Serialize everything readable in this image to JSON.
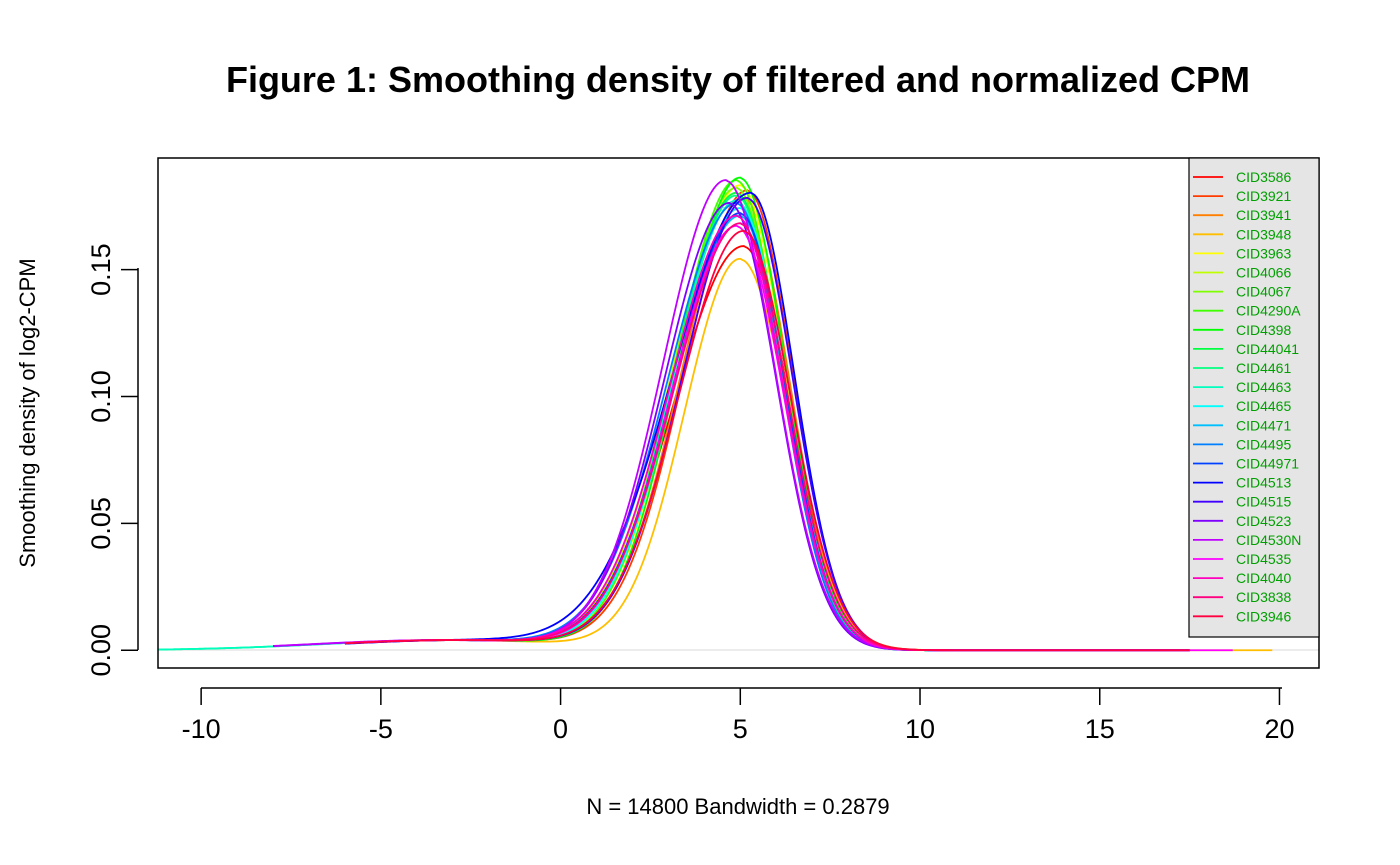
{
  "chart_data": {
    "type": "line",
    "title": "Figure 1: Smoothing density of filtered and normalized CPM",
    "xlabel": "N = 14800   Bandwidth = 0.2879",
    "ylabel": "Smoothing density of log2-CPM",
    "xlim": [
      -11.2,
      21.1
    ],
    "ylim": [
      -0.007,
      0.194
    ],
    "x_ticks": [
      -10,
      -5,
      0,
      5,
      10,
      15,
      20
    ],
    "x_tick_labels": [
      "-10",
      "-5",
      "0",
      "5",
      "10",
      "15",
      "20"
    ],
    "y_ticks": [
      0,
      0.05,
      0.1,
      0.15
    ],
    "y_tick_labels": [
      "0.00",
      "0.05",
      "0.10",
      "0.15"
    ],
    "zero_line": true,
    "legend_position": "top-right",
    "legend_background": "#e5e5e5",
    "legend_text_color": "#00a000",
    "series": [
      {
        "name": "CID3586",
        "color": "#ff0000",
        "peak_x": 5.1,
        "peak_y": 0.159,
        "left_sd": 1.95,
        "right_sd": 1.3,
        "x_min": -5.5,
        "x_max": 17.5
      },
      {
        "name": "CID3921",
        "color": "#ff3c00",
        "peak_x": 5.2,
        "peak_y": 0.181,
        "left_sd": 1.75,
        "right_sd": 1.25,
        "x_min": -5.5,
        "x_max": 17.5
      },
      {
        "name": "CID3941",
        "color": "#ff7f00",
        "peak_x": 5.1,
        "peak_y": 0.178,
        "left_sd": 1.75,
        "right_sd": 1.25,
        "x_min": -5.5,
        "x_max": 17.5
      },
      {
        "name": "CID3948",
        "color": "#ffbf00",
        "peak_x": 5.0,
        "peak_y": 0.154,
        "left_sd": 1.55,
        "right_sd": 1.35,
        "x_min": -5.5,
        "x_max": 19.8
      },
      {
        "name": "CID3963",
        "color": "#ffff00",
        "peak_x": 5.0,
        "peak_y": 0.183,
        "left_sd": 1.75,
        "right_sd": 1.25,
        "x_min": -5.5,
        "x_max": 17.5
      },
      {
        "name": "CID4066",
        "color": "#bfff00",
        "peak_x": 4.9,
        "peak_y": 0.18,
        "left_sd": 1.8,
        "right_sd": 1.25,
        "x_min": -5.5,
        "x_max": 17.5
      },
      {
        "name": "CID4067",
        "color": "#80ff00",
        "peak_x": 4.9,
        "peak_y": 0.182,
        "left_sd": 1.75,
        "right_sd": 1.25,
        "x_min": -5.5,
        "x_max": 17.5
      },
      {
        "name": "CID4290A",
        "color": "#40ff00",
        "peak_x": 4.9,
        "peak_y": 0.185,
        "left_sd": 1.7,
        "right_sd": 1.25,
        "x_min": -5.5,
        "x_max": 17.5
      },
      {
        "name": "CID4398",
        "color": "#00ff00",
        "peak_x": 5.0,
        "peak_y": 0.186,
        "left_sd": 1.7,
        "right_sd": 1.25,
        "x_min": -5.5,
        "x_max": 17.5
      },
      {
        "name": "CID44041",
        "color": "#00ff40",
        "peak_x": 4.9,
        "peak_y": 0.18,
        "left_sd": 1.75,
        "right_sd": 1.25,
        "x_min": -5.5,
        "x_max": 17.5
      },
      {
        "name": "CID4461",
        "color": "#00ff80",
        "peak_x": 4.9,
        "peak_y": 0.179,
        "left_sd": 1.75,
        "right_sd": 1.25,
        "x_min": -11.2,
        "x_max": 17.5
      },
      {
        "name": "CID4463",
        "color": "#00ffbf",
        "peak_x": 4.9,
        "peak_y": 0.177,
        "left_sd": 1.75,
        "right_sd": 1.25,
        "x_min": -11.2,
        "x_max": 17.5
      },
      {
        "name": "CID4465",
        "color": "#00ffff",
        "peak_x": 5.0,
        "peak_y": 0.174,
        "left_sd": 1.8,
        "right_sd": 1.25,
        "x_min": -5.5,
        "x_max": 17.5
      },
      {
        "name": "CID4471",
        "color": "#00bfff",
        "peak_x": 5.0,
        "peak_y": 0.171,
        "left_sd": 1.85,
        "right_sd": 1.25,
        "x_min": -5.5,
        "x_max": 17.5
      },
      {
        "name": "CID4495",
        "color": "#0080ff",
        "peak_x": 4.9,
        "peak_y": 0.176,
        "left_sd": 1.9,
        "right_sd": 1.25,
        "x_min": -5.5,
        "x_max": 17.5
      },
      {
        "name": "CID44971",
        "color": "#0040ff",
        "peak_x": 5.0,
        "peak_y": 0.172,
        "left_sd": 1.85,
        "right_sd": 1.25,
        "x_min": -5.5,
        "x_max": 17.5
      },
      {
        "name": "CID4513",
        "color": "#0000ff",
        "peak_x": 5.3,
        "peak_y": 0.18,
        "left_sd": 2.15,
        "right_sd": 1.2,
        "x_min": -6.0,
        "x_max": 17.5
      },
      {
        "name": "CID4515",
        "color": "#4000ff",
        "peak_x": 5.2,
        "peak_y": 0.178,
        "left_sd": 1.8,
        "right_sd": 1.25,
        "x_min": -5.5,
        "x_max": 17.5
      },
      {
        "name": "CID4523",
        "color": "#8000ff",
        "peak_x": 4.7,
        "peak_y": 0.176,
        "left_sd": 1.8,
        "right_sd": 1.3,
        "x_min": -8.0,
        "x_max": 17.5
      },
      {
        "name": "CID4530N",
        "color": "#bf00ff",
        "peak_x": 4.6,
        "peak_y": 0.185,
        "left_sd": 1.75,
        "right_sd": 1.35,
        "x_min": -8.0,
        "x_max": 17.5
      },
      {
        "name": "CID4535",
        "color": "#ff00ff",
        "peak_x": 4.9,
        "peak_y": 0.167,
        "left_sd": 1.8,
        "right_sd": 1.3,
        "x_min": -6.0,
        "x_max": 18.7
      },
      {
        "name": "CID4040",
        "color": "#ff00bf",
        "peak_x": 4.9,
        "peak_y": 0.171,
        "left_sd": 1.85,
        "right_sd": 1.3,
        "x_min": -6.0,
        "x_max": 17.5
      },
      {
        "name": "CID3838",
        "color": "#ff0080",
        "peak_x": 5.0,
        "peak_y": 0.168,
        "left_sd": 1.85,
        "right_sd": 1.3,
        "x_min": -6.0,
        "x_max": 17.5
      },
      {
        "name": "CID3946",
        "color": "#ff0040",
        "peak_x": 5.1,
        "peak_y": 0.165,
        "left_sd": 1.8,
        "right_sd": 1.3,
        "x_min": -6.0,
        "x_max": 17.5
      }
    ]
  }
}
